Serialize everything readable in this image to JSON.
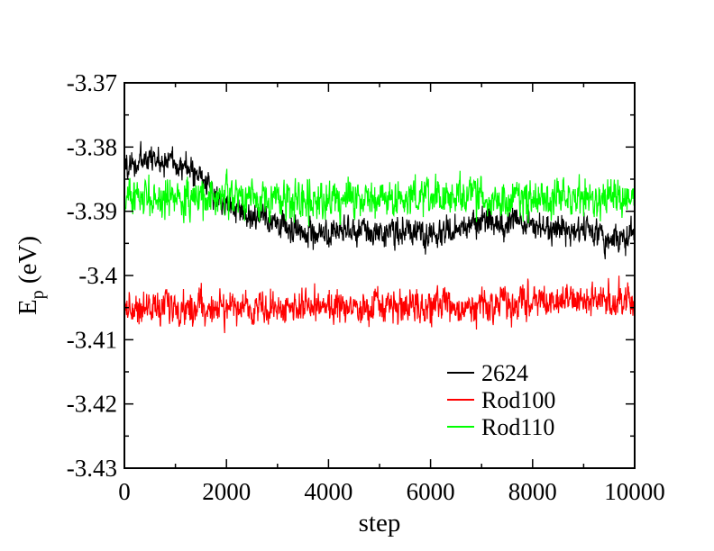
{
  "chart_data": {
    "type": "line",
    "title": "",
    "xlabel": "step",
    "ylabel": {
      "main": "E",
      "subscript": "p",
      "unit": " (eV)"
    },
    "xlim": [
      0,
      10000
    ],
    "ylim": [
      -3.43,
      -3.37
    ],
    "x_ticks": [
      0,
      2000,
      4000,
      6000,
      8000,
      10000
    ],
    "x_tick_labels": [
      "0",
      "2000",
      "4000",
      "6000",
      "8000",
      "10000"
    ],
    "y_ticks": [
      -3.37,
      -3.38,
      -3.39,
      -3.4,
      -3.41,
      -3.42,
      -3.43
    ],
    "y_tick_labels": [
      "-3.37",
      "-3.38",
      "-3.39",
      "-3.4",
      "-3.41",
      "-3.42",
      "-3.43"
    ],
    "grid": false,
    "legend_position": "bottom-right",
    "series": [
      {
        "name": "2624",
        "color": "#000000",
        "x": [
          0,
          500,
          1000,
          1500,
          2000,
          2500,
          3000,
          3500,
          4000,
          4500,
          5000,
          5500,
          6000,
          6500,
          7000,
          7500,
          8000,
          8500,
          9000,
          9500,
          10000
        ],
        "y": [
          -3.383,
          -3.382,
          -3.382,
          -3.385,
          -3.389,
          -3.391,
          -3.392,
          -3.393,
          -3.394,
          -3.393,
          -3.393,
          -3.393,
          -3.394,
          -3.393,
          -3.391,
          -3.392,
          -3.392,
          -3.393,
          -3.393,
          -3.394,
          -3.394
        ],
        "noise_amplitude": 0.003
      },
      {
        "name": "Rod100",
        "color": "#ff0000",
        "x": [
          0,
          1000,
          2000,
          3000,
          4000,
          5000,
          6000,
          7000,
          8000,
          9000,
          10000
        ],
        "y": [
          -3.405,
          -3.405,
          -3.405,
          -3.405,
          -3.405,
          -3.405,
          -3.405,
          -3.405,
          -3.404,
          -3.404,
          -3.404
        ],
        "noise_amplitude": 0.0035
      },
      {
        "name": "Rod110",
        "color": "#00ff00",
        "x": [
          0,
          1000,
          2000,
          3000,
          4000,
          5000,
          6000,
          7000,
          8000,
          9000,
          10000
        ],
        "y": [
          -3.388,
          -3.388,
          -3.388,
          -3.388,
          -3.388,
          -3.388,
          -3.388,
          -3.388,
          -3.388,
          -3.388,
          -3.388
        ],
        "noise_amplitude": 0.004
      }
    ]
  }
}
